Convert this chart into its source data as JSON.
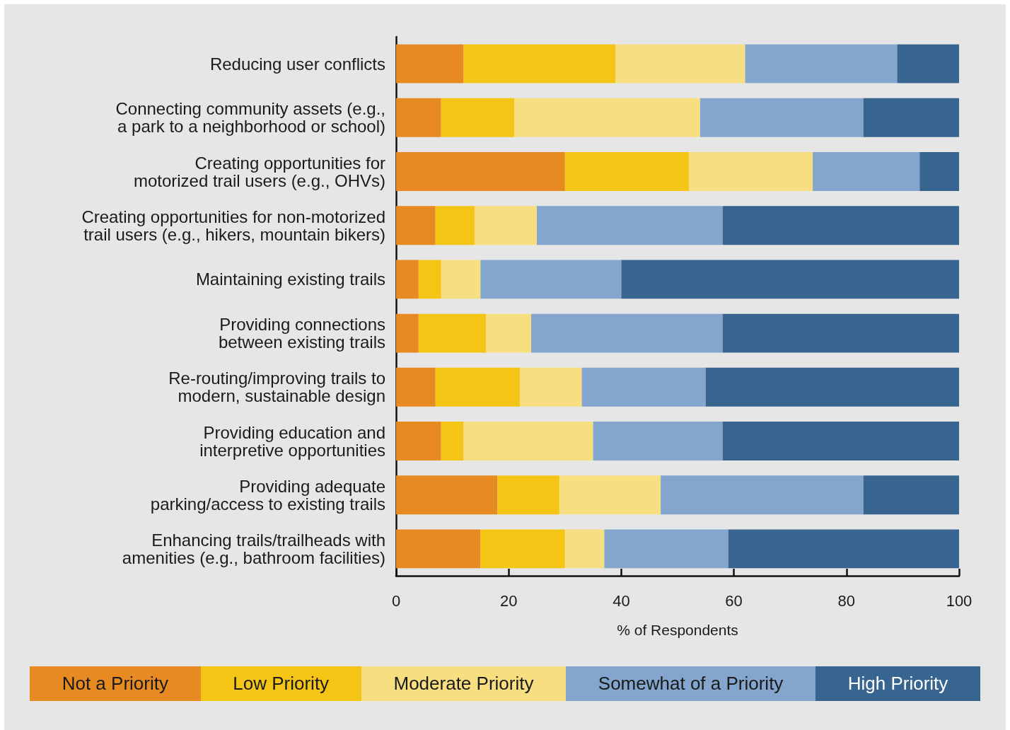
{
  "chart_data": {
    "type": "bar",
    "orientation": "horizontal",
    "stacked": true,
    "xlabel": "% of Respondents",
    "categories": [
      "Reducing user conflicts",
      "Connecting community assets (e.g.,\na park to a neighborhood or school)",
      "Creating opportunities for\nmotorized trail users (e.g., OHVs)",
      "Creating opportunities for non-motorized\ntrail users (e.g., hikers, mountain bikers)",
      "Maintaining existing trails",
      "Providing connections\nbetween existing trails",
      "Re-routing/improving trails to\nmodern, sustainable design",
      "Providing education and\ninterpretive opportunities",
      "Providing adequate\nparking/access to existing trails",
      "Enhancing trails/trailheads with\namenities (e.g., bathroom facilities)"
    ],
    "series": [
      {
        "name": "Not a Priority",
        "color": "#e88a22",
        "values": [
          12,
          8,
          30,
          7,
          4,
          4,
          7,
          8,
          18,
          15
        ]
      },
      {
        "name": "Low Priority",
        "color": "#f5c515",
        "values": [
          27,
          13,
          22,
          7,
          4,
          12,
          15,
          4,
          11,
          15
        ]
      },
      {
        "name": "Moderate Priority",
        "color": "#f7de80",
        "values": [
          23,
          33,
          22,
          11,
          7,
          8,
          11,
          23,
          18,
          7
        ]
      },
      {
        "name": "Somewhat of a Priority",
        "color": "#84a5cd",
        "values": [
          27,
          29,
          19,
          33,
          25,
          34,
          22,
          23,
          36,
          22
        ]
      },
      {
        "name": "High Priority",
        "color": "#37658f",
        "values": [
          11,
          17,
          7,
          42,
          60,
          42,
          45,
          42,
          17,
          41
        ]
      }
    ],
    "xlim": [
      0,
      100
    ],
    "xticks": [
      0,
      20,
      40,
      60,
      80,
      100
    ],
    "grid": false,
    "legend": "bottom"
  }
}
